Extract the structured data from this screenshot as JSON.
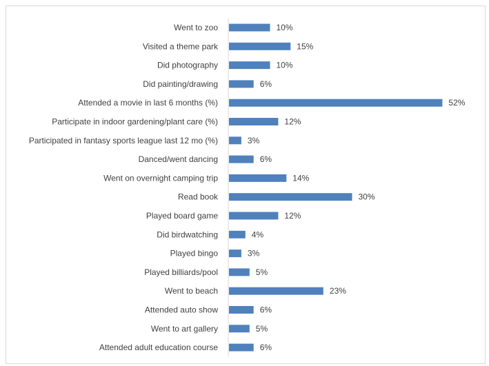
{
  "chart_data": {
    "type": "bar",
    "orientation": "horizontal",
    "title": "",
    "xlabel": "",
    "ylabel": "",
    "grid": false,
    "legend": "none",
    "value_format": "percent",
    "bar_color": "#4f81bd",
    "categories": [
      "Went to zoo",
      "Visited a theme park",
      "Did photography",
      "Did painting/drawing",
      "Attended a movie in last 6 months (%)",
      "Participate in indoor gardening/plant care (%)",
      "Participated in fantasy sports league last 12 mo (%)",
      "Danced/went dancing",
      "Went on overnight camping trip",
      "Read book",
      "Played board game",
      "Did birdwatching",
      "Played bingo",
      "Played billiards/pool",
      "Went to beach",
      "Attended auto show",
      "Went to art gallery",
      "Attended adult education course"
    ],
    "values": [
      10,
      15,
      10,
      6,
      52,
      12,
      3,
      6,
      14,
      30,
      12,
      4,
      3,
      5,
      23,
      6,
      5,
      6
    ],
    "value_labels": [
      "10%",
      "15%",
      "10%",
      "6%",
      "52%",
      "12%",
      "3%",
      "6%",
      "14%",
      "30%",
      "12%",
      "4%",
      "3%",
      "5%",
      "23%",
      "6%",
      "5%",
      "6%"
    ]
  }
}
